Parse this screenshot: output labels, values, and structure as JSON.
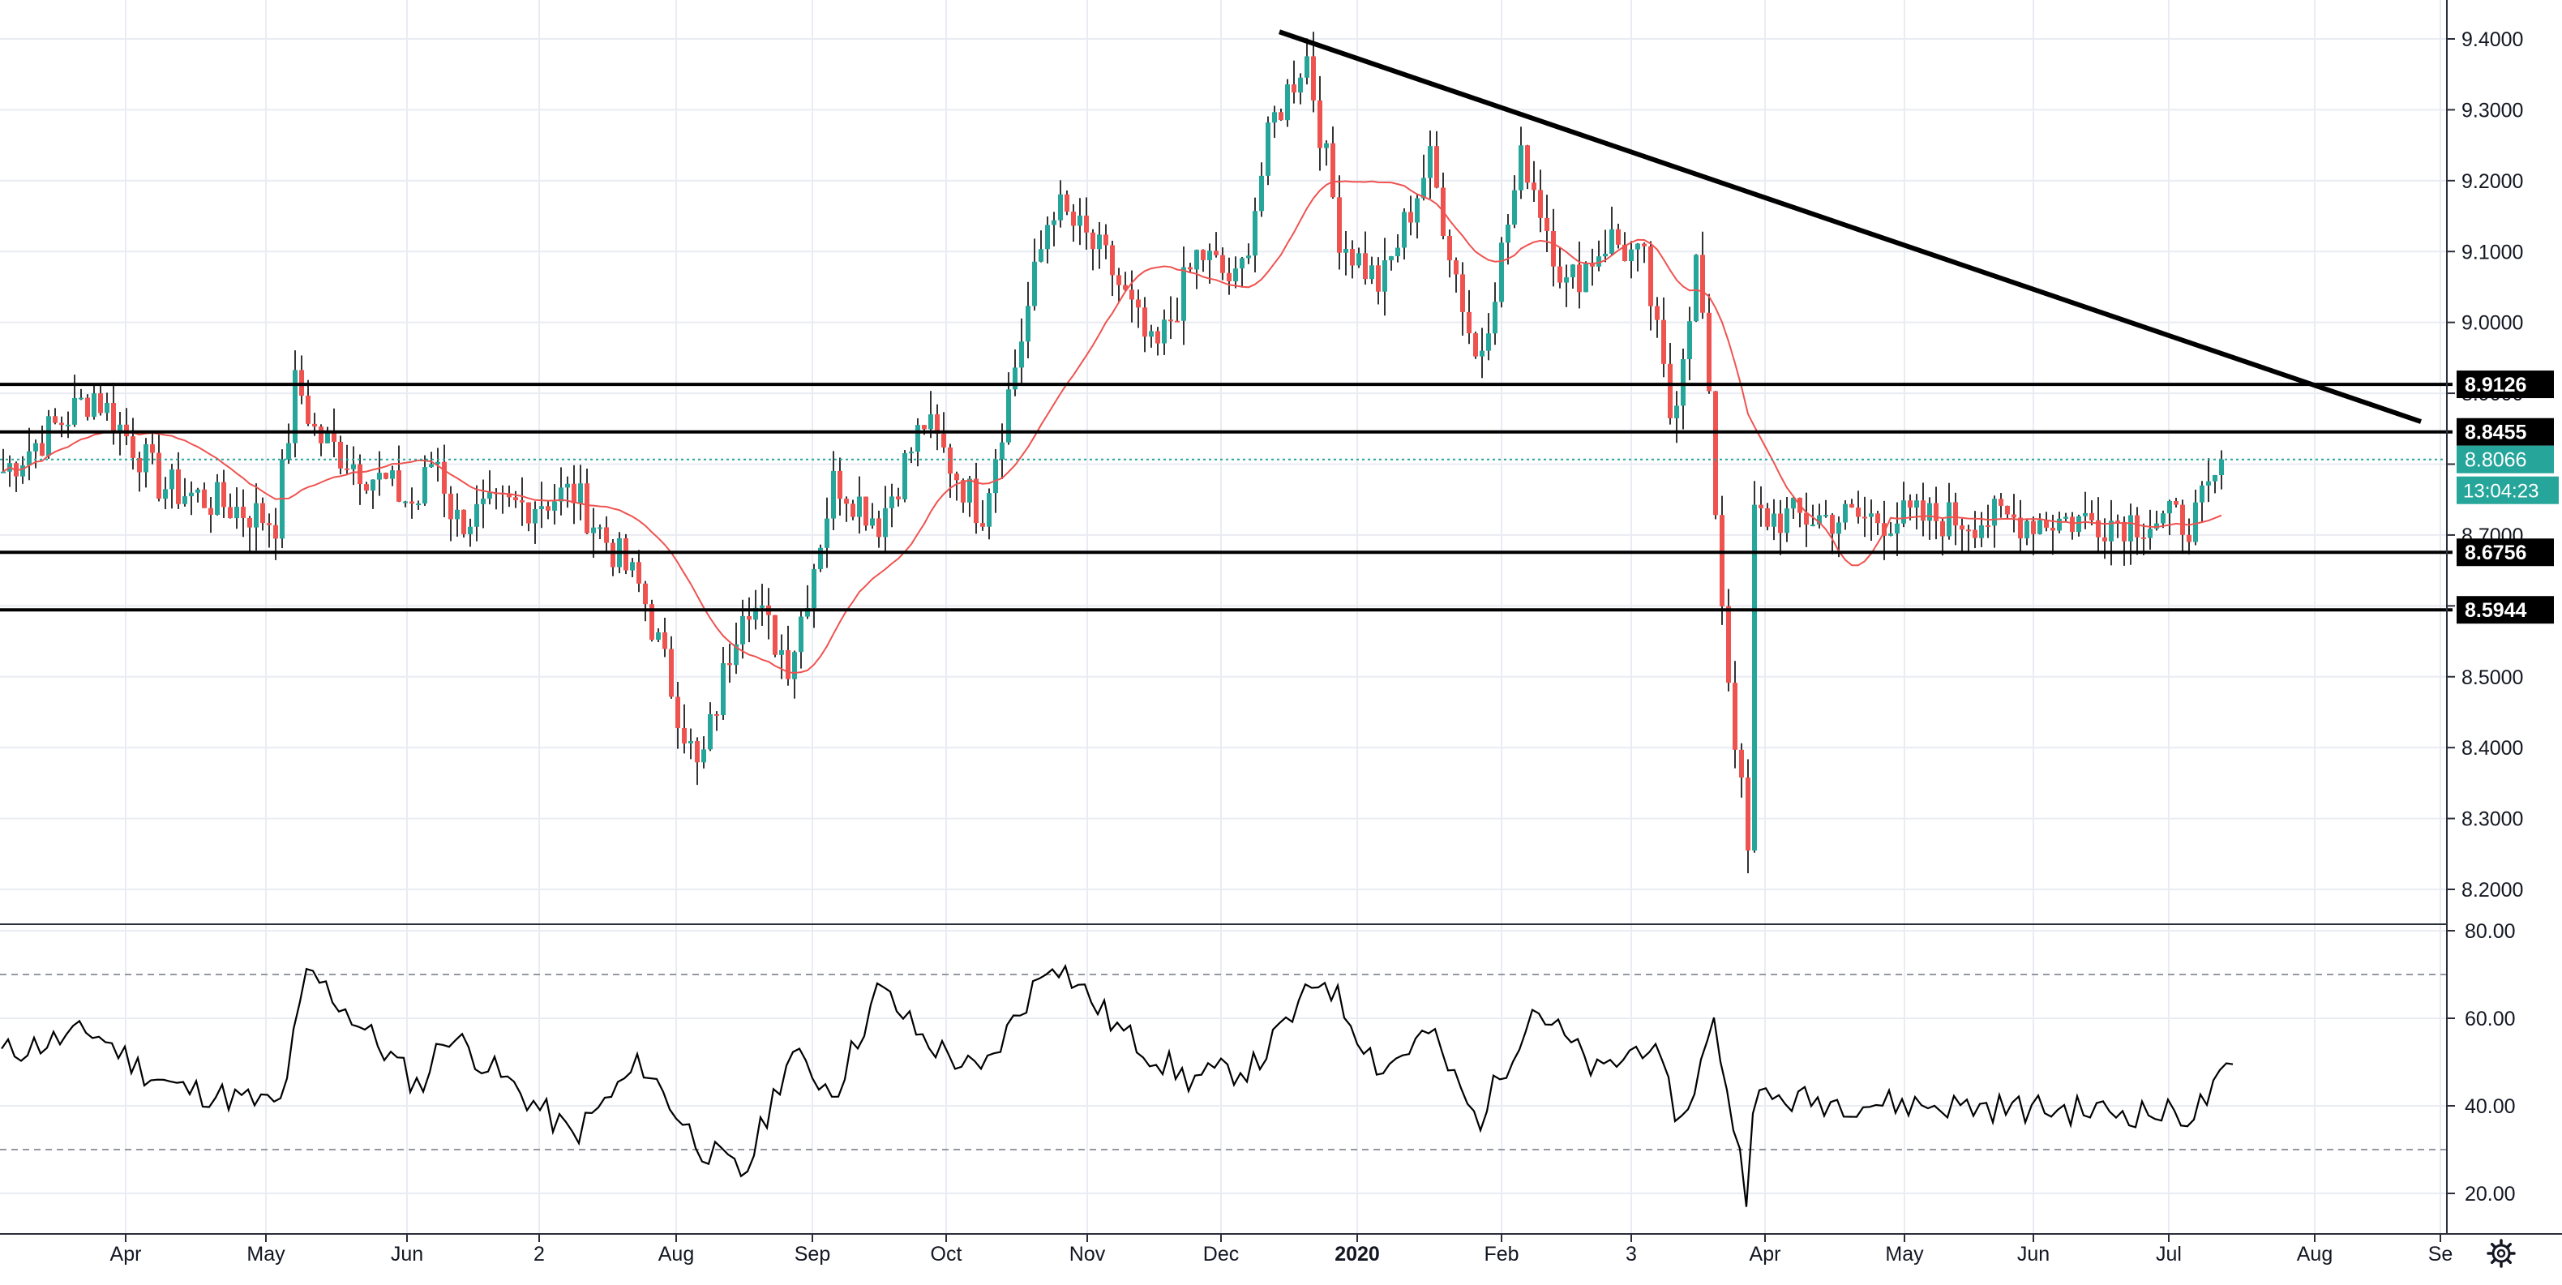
{
  "chart_data": [
    {
      "type": "candlestick",
      "panel": "price",
      "title": "",
      "xlabel": "",
      "ylabel": "",
      "x_axis_labels": [
        "Apr",
        "May",
        "Jun",
        "2",
        "Aug",
        "Sep",
        "Oct",
        "Nov",
        "Dec",
        "2020",
        "Feb",
        "3",
        "Apr",
        "May",
        "Jun",
        "Jul",
        "Aug",
        "Se"
      ],
      "y_ticks": [
        "8.2000",
        "8.3000",
        "8.4000",
        "8.5000",
        "8.6000",
        "8.7000",
        "8.8000",
        "8.9000",
        "9.0000",
        "9.1000",
        "9.2000",
        "9.3000",
        "9.4000"
      ],
      "ylim": [
        8.17,
        9.44
      ],
      "horizontal_levels": [
        {
          "label": "8.9126",
          "value": 8.9126
        },
        {
          "label": "8.8455",
          "value": 8.8455
        },
        {
          "label": "8.6756",
          "value": 8.6756
        },
        {
          "label": "8.5944",
          "value": 8.5944
        }
      ],
      "last_price": {
        "label": "8.8066",
        "value": 8.8066,
        "countdown": "13:04:23"
      },
      "trendline": {
        "from": {
          "x": "Dec",
          "y": 9.41
        },
        "to": {
          "x": "Jul",
          "y": 8.86
        }
      },
      "grid": true,
      "legend": "none",
      "moving_average_color": "#ef5350",
      "up_color": "#26a69a",
      "down_color": "#ef5350",
      "price_path": [
        {
          "x": "Mar",
          "y": 8.79
        },
        {
          "x": "Mar",
          "y": 8.9
        },
        {
          "x": "Apr",
          "y": 8.82
        },
        {
          "x": "Apr",
          "y": 8.77
        },
        {
          "x": "May",
          "y": 8.72
        },
        {
          "x": "May",
          "y": 8.92
        },
        {
          "x": "May",
          "y": 8.84
        },
        {
          "x": "Jun",
          "y": 8.74
        },
        {
          "x": "Jun",
          "y": 8.82
        },
        {
          "x": "Jun",
          "y": 8.72
        },
        {
          "x": "2",
          "y": 8.76
        },
        {
          "x": "2",
          "y": 8.62
        },
        {
          "x": "Aug",
          "y": 8.36
        },
        {
          "x": "Aug",
          "y": 8.62
        },
        {
          "x": "Aug",
          "y": 8.52
        },
        {
          "x": "Sep",
          "y": 8.78
        },
        {
          "x": "Sep",
          "y": 8.72
        },
        {
          "x": "Sep",
          "y": 8.86
        },
        {
          "x": "Oct",
          "y": 8.73
        },
        {
          "x": "Oct",
          "y": 9.17
        },
        {
          "x": "Nov",
          "y": 9.08
        },
        {
          "x": "Nov",
          "y": 8.95
        },
        {
          "x": "Nov",
          "y": 9.1
        },
        {
          "x": "Dec",
          "y": 9.05
        },
        {
          "x": "Dec",
          "y": 9.28
        },
        {
          "x": "Dec",
          "y": 9.38
        },
        {
          "x": "Dec",
          "y": 9.12
        },
        {
          "x": "2020",
          "y": 9.05
        },
        {
          "x": "2020",
          "y": 9.23
        },
        {
          "x": "2020",
          "y": 8.94
        },
        {
          "x": "Feb",
          "y": 9.24
        },
        {
          "x": "Feb",
          "y": 9.05
        },
        {
          "x": "Feb",
          "y": 9.12
        },
        {
          "x": "3",
          "y": 9.08
        },
        {
          "x": "3",
          "y": 8.86
        },
        {
          "x": "3",
          "y": 9.1
        },
        {
          "x": "3",
          "y": 8.55
        },
        {
          "x": "3",
          "y": 8.2
        },
        {
          "x": "Apr",
          "y": 8.62
        },
        {
          "x": "Apr",
          "y": 8.82
        },
        {
          "x": "Apr",
          "y": 8.72
        },
        {
          "x": "Apr",
          "y": 8.86
        },
        {
          "x": "May",
          "y": 8.73
        },
        {
          "x": "May",
          "y": 8.9
        },
        {
          "x": "May",
          "y": 8.7
        },
        {
          "x": "May",
          "y": 8.66
        },
        {
          "x": "Jun",
          "y": 8.78
        },
        {
          "x": "Jun",
          "y": 9.0
        },
        {
          "x": "Jun",
          "y": 8.85
        },
        {
          "x": "Jun",
          "y": 8.74
        },
        {
          "x": "Jul",
          "y": 8.72
        },
        {
          "x": "Jul",
          "y": 8.83
        },
        {
          "x": "Jul",
          "y": 8.8066
        }
      ]
    },
    {
      "type": "line",
      "panel": "oscillator",
      "title": "",
      "y_ticks": [
        "20.00",
        "40.00",
        "60.00",
        "80.00"
      ],
      "ylim": [
        15,
        80
      ],
      "bands": [
        30,
        70
      ],
      "grid": true,
      "series_color": "#000000",
      "points": [
        {
          "x": "Mar",
          "y": 52
        },
        {
          "x": "Mar",
          "y": 57
        },
        {
          "x": "Apr",
          "y": 48
        },
        {
          "x": "Apr",
          "y": 44
        },
        {
          "x": "May",
          "y": 40
        },
        {
          "x": "May",
          "y": 71
        },
        {
          "x": "Jun",
          "y": 44
        },
        {
          "x": "Jun",
          "y": 57
        },
        {
          "x": "2",
          "y": 33
        },
        {
          "x": "2",
          "y": 50
        },
        {
          "x": "Aug",
          "y": 31
        },
        {
          "x": "Aug",
          "y": 24
        },
        {
          "x": "Aug",
          "y": 52
        },
        {
          "x": "Sep",
          "y": 43
        },
        {
          "x": "Sep",
          "y": 67
        },
        {
          "x": "Sep",
          "y": 55
        },
        {
          "x": "Oct",
          "y": 47
        },
        {
          "x": "Oct",
          "y": 74
        },
        {
          "x": "Nov",
          "y": 57
        },
        {
          "x": "Nov",
          "y": 46
        },
        {
          "x": "Dec",
          "y": 49
        },
        {
          "x": "Dec",
          "y": 70
        },
        {
          "x": "2020",
          "y": 48
        },
        {
          "x": "2020",
          "y": 57
        },
        {
          "x": "2020",
          "y": 36
        },
        {
          "x": "Feb",
          "y": 63
        },
        {
          "x": "Feb",
          "y": 47
        },
        {
          "x": "3",
          "y": 55
        },
        {
          "x": "3",
          "y": 36
        },
        {
          "x": "3",
          "y": 59
        },
        {
          "x": "3",
          "y": 18
        },
        {
          "x": "Apr",
          "y": 56
        },
        {
          "x": "Apr",
          "y": 50
        },
        {
          "x": "May",
          "y": 58
        },
        {
          "x": "May",
          "y": 45
        },
        {
          "x": "May",
          "y": 38
        },
        {
          "x": "Jun",
          "y": 48
        },
        {
          "x": "Jun",
          "y": 69
        },
        {
          "x": "Jun",
          "y": 52
        },
        {
          "x": "Jul",
          "y": 38
        },
        {
          "x": "Jul",
          "y": 51
        },
        {
          "x": "Jul",
          "y": 48
        }
      ]
    }
  ],
  "colors": {
    "axis_text": "#131722",
    "grid": "#e9ecf2",
    "level_line": "#000000",
    "label_bg": "#000000",
    "label_text": "#ffffff",
    "last_price_bg": "#26a69a"
  },
  "icons": {
    "settings": "gear-icon"
  }
}
